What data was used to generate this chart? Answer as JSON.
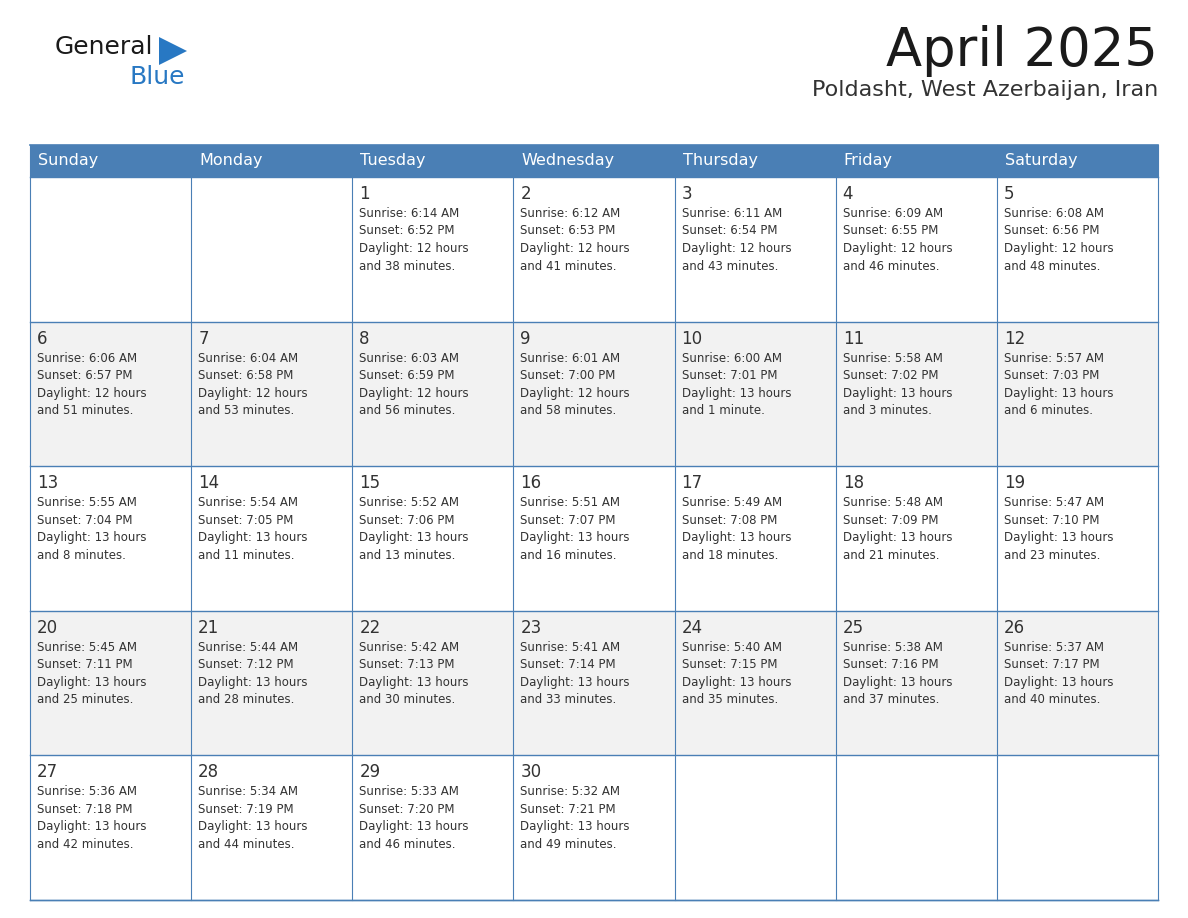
{
  "title": "April 2025",
  "subtitle": "Poldasht, West Azerbaijan, Iran",
  "days_of_week": [
    "Sunday",
    "Monday",
    "Tuesday",
    "Wednesday",
    "Thursday",
    "Friday",
    "Saturday"
  ],
  "header_bg": "#4a7fb5",
  "header_text": "#ffffff",
  "cell_bg_white": "#ffffff",
  "cell_bg_gray": "#f2f2f2",
  "border_color": "#4a7fb5",
  "row_divider_color": "#4a7fb5",
  "text_color": "#333333",
  "title_color": "#1a1a1a",
  "subtitle_color": "#333333",
  "logo_general_color": "#1a1a1a",
  "logo_blue_color": "#2878c3",
  "logo_triangle_color": "#2878c3",
  "week_rows": [
    [
      {
        "day": null,
        "info": null
      },
      {
        "day": null,
        "info": null
      },
      {
        "day": 1,
        "info": "Sunrise: 6:14 AM\nSunset: 6:52 PM\nDaylight: 12 hours\nand 38 minutes."
      },
      {
        "day": 2,
        "info": "Sunrise: 6:12 AM\nSunset: 6:53 PM\nDaylight: 12 hours\nand 41 minutes."
      },
      {
        "day": 3,
        "info": "Sunrise: 6:11 AM\nSunset: 6:54 PM\nDaylight: 12 hours\nand 43 minutes."
      },
      {
        "day": 4,
        "info": "Sunrise: 6:09 AM\nSunset: 6:55 PM\nDaylight: 12 hours\nand 46 minutes."
      },
      {
        "day": 5,
        "info": "Sunrise: 6:08 AM\nSunset: 6:56 PM\nDaylight: 12 hours\nand 48 minutes."
      }
    ],
    [
      {
        "day": 6,
        "info": "Sunrise: 6:06 AM\nSunset: 6:57 PM\nDaylight: 12 hours\nand 51 minutes."
      },
      {
        "day": 7,
        "info": "Sunrise: 6:04 AM\nSunset: 6:58 PM\nDaylight: 12 hours\nand 53 minutes."
      },
      {
        "day": 8,
        "info": "Sunrise: 6:03 AM\nSunset: 6:59 PM\nDaylight: 12 hours\nand 56 minutes."
      },
      {
        "day": 9,
        "info": "Sunrise: 6:01 AM\nSunset: 7:00 PM\nDaylight: 12 hours\nand 58 minutes."
      },
      {
        "day": 10,
        "info": "Sunrise: 6:00 AM\nSunset: 7:01 PM\nDaylight: 13 hours\nand 1 minute."
      },
      {
        "day": 11,
        "info": "Sunrise: 5:58 AM\nSunset: 7:02 PM\nDaylight: 13 hours\nand 3 minutes."
      },
      {
        "day": 12,
        "info": "Sunrise: 5:57 AM\nSunset: 7:03 PM\nDaylight: 13 hours\nand 6 minutes."
      }
    ],
    [
      {
        "day": 13,
        "info": "Sunrise: 5:55 AM\nSunset: 7:04 PM\nDaylight: 13 hours\nand 8 minutes."
      },
      {
        "day": 14,
        "info": "Sunrise: 5:54 AM\nSunset: 7:05 PM\nDaylight: 13 hours\nand 11 minutes."
      },
      {
        "day": 15,
        "info": "Sunrise: 5:52 AM\nSunset: 7:06 PM\nDaylight: 13 hours\nand 13 minutes."
      },
      {
        "day": 16,
        "info": "Sunrise: 5:51 AM\nSunset: 7:07 PM\nDaylight: 13 hours\nand 16 minutes."
      },
      {
        "day": 17,
        "info": "Sunrise: 5:49 AM\nSunset: 7:08 PM\nDaylight: 13 hours\nand 18 minutes."
      },
      {
        "day": 18,
        "info": "Sunrise: 5:48 AM\nSunset: 7:09 PM\nDaylight: 13 hours\nand 21 minutes."
      },
      {
        "day": 19,
        "info": "Sunrise: 5:47 AM\nSunset: 7:10 PM\nDaylight: 13 hours\nand 23 minutes."
      }
    ],
    [
      {
        "day": 20,
        "info": "Sunrise: 5:45 AM\nSunset: 7:11 PM\nDaylight: 13 hours\nand 25 minutes."
      },
      {
        "day": 21,
        "info": "Sunrise: 5:44 AM\nSunset: 7:12 PM\nDaylight: 13 hours\nand 28 minutes."
      },
      {
        "day": 22,
        "info": "Sunrise: 5:42 AM\nSunset: 7:13 PM\nDaylight: 13 hours\nand 30 minutes."
      },
      {
        "day": 23,
        "info": "Sunrise: 5:41 AM\nSunset: 7:14 PM\nDaylight: 13 hours\nand 33 minutes."
      },
      {
        "day": 24,
        "info": "Sunrise: 5:40 AM\nSunset: 7:15 PM\nDaylight: 13 hours\nand 35 minutes."
      },
      {
        "day": 25,
        "info": "Sunrise: 5:38 AM\nSunset: 7:16 PM\nDaylight: 13 hours\nand 37 minutes."
      },
      {
        "day": 26,
        "info": "Sunrise: 5:37 AM\nSunset: 7:17 PM\nDaylight: 13 hours\nand 40 minutes."
      }
    ],
    [
      {
        "day": 27,
        "info": "Sunrise: 5:36 AM\nSunset: 7:18 PM\nDaylight: 13 hours\nand 42 minutes."
      },
      {
        "day": 28,
        "info": "Sunrise: 5:34 AM\nSunset: 7:19 PM\nDaylight: 13 hours\nand 44 minutes."
      },
      {
        "day": 29,
        "info": "Sunrise: 5:33 AM\nSunset: 7:20 PM\nDaylight: 13 hours\nand 46 minutes."
      },
      {
        "day": 30,
        "info": "Sunrise: 5:32 AM\nSunset: 7:21 PM\nDaylight: 13 hours\nand 49 minutes."
      },
      {
        "day": null,
        "info": null
      },
      {
        "day": null,
        "info": null
      },
      {
        "day": null,
        "info": null
      }
    ]
  ]
}
